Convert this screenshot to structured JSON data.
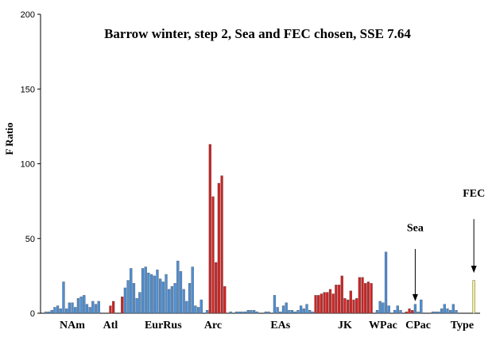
{
  "chart_data": {
    "type": "bar",
    "title": "Barrow winter, step 2, Sea and FEC chosen, SSE 7.64",
    "ylabel": "F Ratio",
    "xlabel": "",
    "ylim": [
      0,
      200
    ],
    "yticks": [
      0,
      50,
      100,
      150,
      200
    ],
    "grid": false,
    "colors": {
      "blue": "#4a8fd8",
      "red": "#d42020",
      "yellow": "#f5f08a",
      "axis": "#000000"
    },
    "values": [
      1,
      1,
      2,
      4,
      5,
      3,
      21,
      3,
      7,
      7,
      4,
      10,
      11,
      12,
      6,
      4,
      8,
      6,
      8,
      0,
      0,
      0,
      5,
      8,
      0,
      0,
      11,
      17,
      22,
      30,
      20,
      10,
      14,
      30,
      31,
      27,
      26,
      25,
      29,
      23,
      21,
      26,
      16,
      18,
      20,
      35,
      28,
      16,
      8,
      20,
      31,
      5,
      4,
      9,
      0,
      2,
      113,
      78,
      34,
      87,
      92,
      18,
      0,
      1,
      0,
      1,
      1,
      1,
      1,
      2,
      2,
      2,
      1,
      0,
      0,
      1,
      1,
      0,
      12,
      4,
      1,
      5,
      7,
      2,
      2,
      1,
      2,
      5,
      3,
      6,
      2,
      1,
      12,
      12,
      13,
      14,
      14,
      16,
      13,
      19,
      19,
      25,
      10,
      9,
      15,
      9,
      10,
      24,
      24,
      20,
      21,
      20,
      0,
      2,
      8,
      7,
      41,
      5,
      0,
      2,
      5,
      2,
      0,
      1,
      3,
      2,
      6,
      1,
      9,
      0,
      0,
      0,
      1,
      1,
      1,
      3,
      6,
      3,
      2,
      6,
      2,
      0,
      0,
      0,
      0,
      0,
      22
    ],
    "colors_per_bar": [
      "b",
      "b",
      "b",
      "b",
      "b",
      "b",
      "b",
      "b",
      "b",
      "b",
      "b",
      "b",
      "b",
      "b",
      "b",
      "b",
      "b",
      "b",
      "b",
      "b",
      "b",
      "b",
      "r",
      "r",
      "b",
      "b",
      "r",
      "b",
      "b",
      "b",
      "b",
      "b",
      "b",
      "b",
      "b",
      "b",
      "b",
      "b",
      "b",
      "b",
      "b",
      "b",
      "b",
      "b",
      "b",
      "b",
      "b",
      "b",
      "b",
      "b",
      "b",
      "b",
      "b",
      "b",
      "b",
      "b",
      "r",
      "r",
      "r",
      "r",
      "r",
      "r",
      "b",
      "b",
      "b",
      "b",
      "b",
      "b",
      "b",
      "b",
      "b",
      "b",
      "b",
      "b",
      "b",
      "b",
      "b",
      "b",
      "b",
      "b",
      "b",
      "b",
      "b",
      "b",
      "b",
      "b",
      "b",
      "b",
      "b",
      "b",
      "b",
      "b",
      "r",
      "r",
      "r",
      "r",
      "r",
      "r",
      "r",
      "r",
      "r",
      "r",
      "r",
      "r",
      "r",
      "r",
      "r",
      "r",
      "r",
      "r",
      "r",
      "r",
      "b",
      "b",
      "b",
      "b",
      "b",
      "b",
      "b",
      "b",
      "b",
      "b",
      "b",
      "r",
      "r",
      "r",
      "b",
      "b",
      "b",
      "b",
      "b",
      "b",
      "b",
      "b",
      "b",
      "b",
      "b",
      "b",
      "b",
      "b",
      "b",
      "b",
      "b",
      "b",
      "b",
      "b",
      "y"
    ],
    "groups": [
      {
        "name": "NAm",
        "at_bar": 9
      },
      {
        "name": "Atl",
        "at_bar": 22
      },
      {
        "name": "EurRus",
        "at_bar": 40
      },
      {
        "name": "Arc",
        "at_bar": 57
      },
      {
        "name": "EAs",
        "at_bar": 80
      },
      {
        "name": "JK",
        "at_bar": 102
      },
      {
        "name": "WPac",
        "at_bar": 115
      },
      {
        "name": "CPac",
        "at_bar": 127
      },
      {
        "name": "Type",
        "at_bar": 142
      }
    ],
    "annotations": [
      {
        "text": "Sea",
        "bar": 126,
        "arrow_from": 43,
        "arrow_to": 8,
        "text_y": 55
      },
      {
        "text": "FEC",
        "bar": 146,
        "arrow_from": 63,
        "arrow_to": 27,
        "text_y": 78
      }
    ]
  }
}
